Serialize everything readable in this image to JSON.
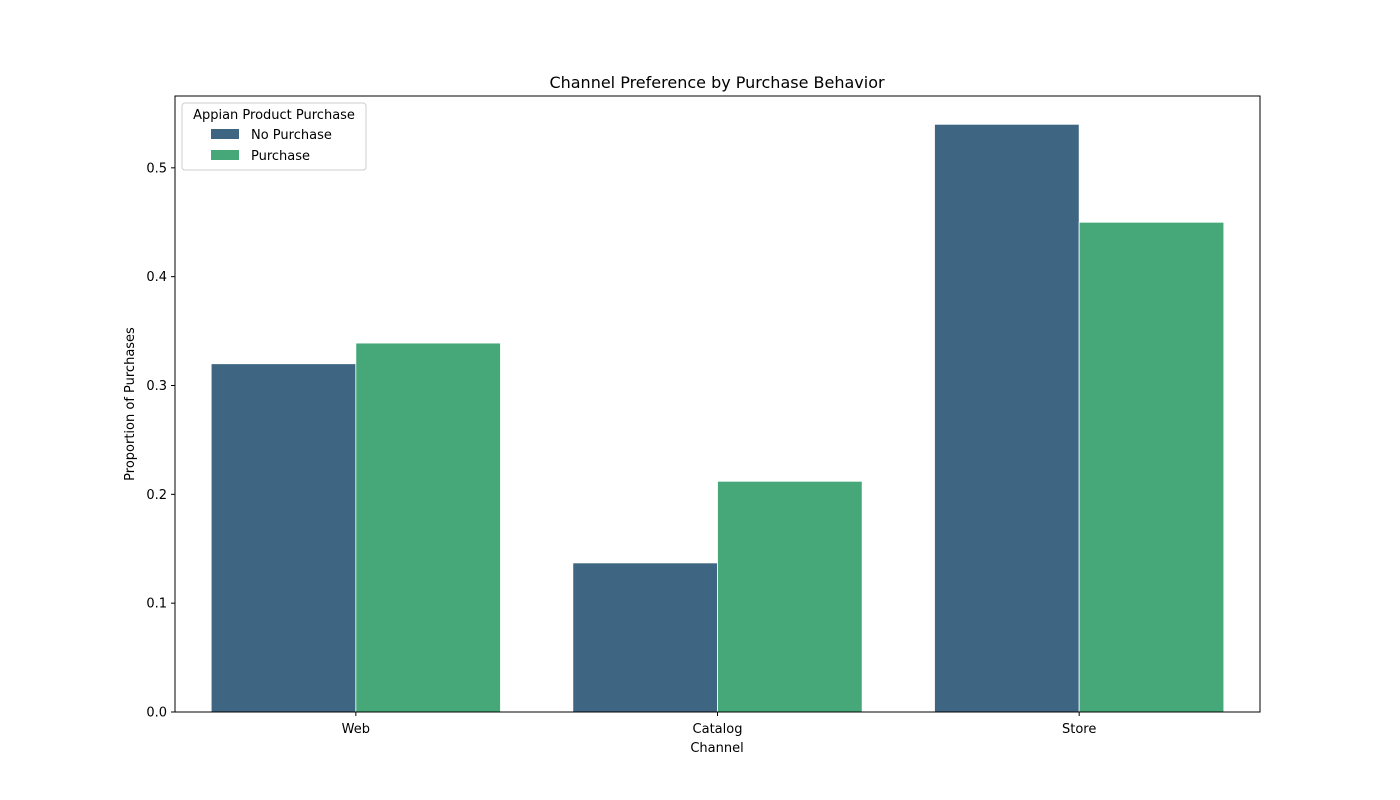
{
  "chart_data": {
    "type": "bar",
    "title": "Channel Preference by Purchase Behavior",
    "xlabel": "Channel",
    "ylabel": "Proportion of Purchases",
    "categories": [
      "Web",
      "Catalog",
      "Store"
    ],
    "series": [
      {
        "name": "No Purchase",
        "values": [
          0.32,
          0.137,
          0.54
        ],
        "color": "#3e6683"
      },
      {
        "name": "Purchase",
        "values": [
          0.339,
          0.212,
          0.45
        ],
        "color": "#46a879"
      }
    ],
    "ylim": [
      0,
      0.566
    ],
    "yticks": [
      0.0,
      0.1,
      0.2,
      0.3,
      0.4,
      0.5
    ],
    "ytick_labels": [
      "0.0",
      "0.1",
      "0.2",
      "0.3",
      "0.4",
      "0.5"
    ],
    "grid": false,
    "legend": {
      "title": "Appian Product Purchase",
      "placement": "top-left"
    }
  }
}
